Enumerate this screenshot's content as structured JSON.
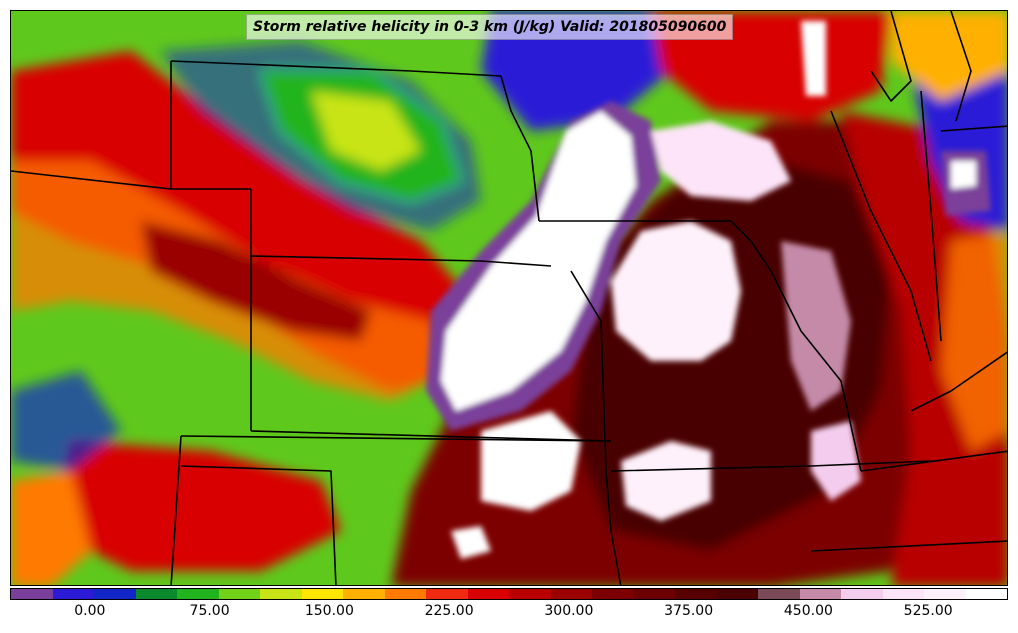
{
  "title": "Storm relative helicity in 0-3 km (J/kg) Valid: 201805090600",
  "colorbar": {
    "colors": [
      "#7a3f9a",
      "#2b1bd6",
      "#1226c8",
      "#0b8a2d",
      "#22b41e",
      "#72d21a",
      "#c8e416",
      "#ffe600",
      "#ffb000",
      "#ff7a00",
      "#ef2a10",
      "#d80000",
      "#b80000",
      "#9a0000",
      "#7d0000",
      "#6a0000",
      "#560000",
      "#4a0000",
      "#7a4a58",
      "#c48aa8",
      "#f4cdee",
      "#fde4f8",
      "#fff1fb",
      "#ffffff"
    ],
    "tick_labels": [
      "0.00",
      "75.00",
      "150.00",
      "225.00",
      "300.00",
      "375.00",
      "450.00",
      "525.00"
    ],
    "tick_fractions": [
      0.08,
      0.2,
      0.32,
      0.44,
      0.56,
      0.68,
      0.8,
      0.92
    ]
  }
}
